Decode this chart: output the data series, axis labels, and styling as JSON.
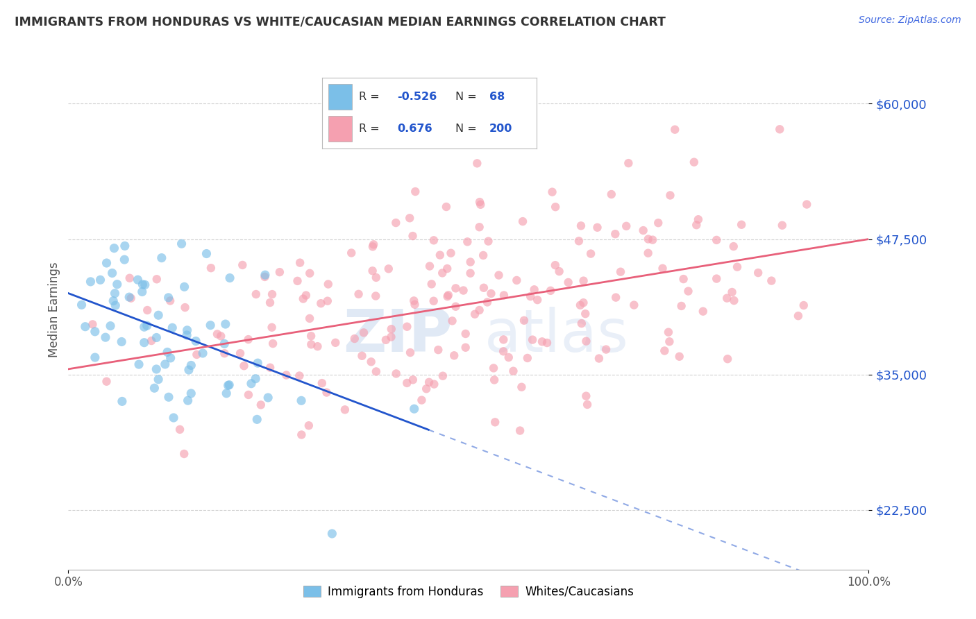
{
  "title": "IMMIGRANTS FROM HONDURAS VS WHITE/CAUCASIAN MEDIAN EARNINGS CORRELATION CHART",
  "source_text": "Source: ZipAtlas.com",
  "ylabel": "Median Earnings",
  "xlim": [
    0,
    1
  ],
  "ylim": [
    17000,
    65000
  ],
  "yticks": [
    22500,
    35000,
    47500,
    60000
  ],
  "ytick_labels": [
    "$22,500",
    "$35,000",
    "$47,500",
    "$60,000"
  ],
  "xtick_labels": [
    "0.0%",
    "100.0%"
  ],
  "blue_dot_color": "#7BBFE8",
  "pink_dot_color": "#F5A0B0",
  "blue_line_color": "#2255CC",
  "pink_line_color": "#E8607A",
  "title_color": "#333333",
  "axis_label_color": "#555555",
  "tick_label_color_right": "#2255CC",
  "watermark_zip": "ZIP",
  "watermark_atlas": "atlas",
  "legend_label_blue": "Immigrants from Honduras",
  "legend_label_pink": "Whites/Caucasians",
  "legend_blue_R": "-0.526",
  "legend_blue_N": "68",
  "legend_pink_R": "0.676",
  "legend_pink_N": "200",
  "blue_scatter_seed": 42,
  "pink_scatter_seed": 77,
  "blue_intercept": 42500,
  "blue_slope": -28000,
  "pink_intercept": 35500,
  "pink_slope": 12000
}
